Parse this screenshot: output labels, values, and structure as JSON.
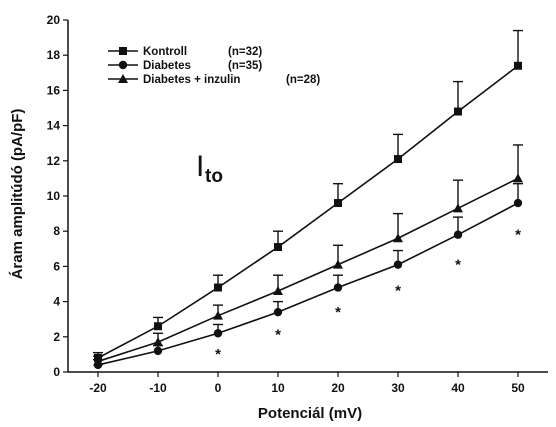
{
  "chart_data": {
    "type": "line",
    "xlabel": "Potenciál (mV)",
    "ylabel": "Áram amplitúdó (pA/pF)",
    "annotation": {
      "main": "I",
      "sub": "to"
    },
    "x": [
      -20,
      -10,
      0,
      10,
      20,
      30,
      40,
      50
    ],
    "xticks": [
      "-20",
      "-10",
      "0",
      "10",
      "20",
      "30",
      "40",
      "50"
    ],
    "xlim": [
      -25,
      55
    ],
    "ylim": [
      0,
      20
    ],
    "yticks": [
      "0",
      "2",
      "4",
      "6",
      "8",
      "10",
      "12",
      "14",
      "16",
      "18",
      "20"
    ],
    "grid": false,
    "legend_position": "top-left",
    "series": [
      {
        "name": "Kontroll",
        "n_label": "(n=32)",
        "marker": "square",
        "values": [
          0.8,
          2.6,
          4.8,
          7.1,
          9.6,
          12.1,
          14.8,
          17.4
        ],
        "errors": [
          0.3,
          0.5,
          0.7,
          0.9,
          1.1,
          1.4,
          1.7,
          2.0
        ]
      },
      {
        "name": "Diabetes",
        "n_label": "(n=35)",
        "marker": "circle",
        "values": [
          0.4,
          1.2,
          2.2,
          3.4,
          4.8,
          6.1,
          7.8,
          9.6
        ],
        "errors": [
          0.3,
          0.3,
          0.5,
          0.6,
          0.7,
          0.8,
          1.0,
          1.1
        ]
      },
      {
        "name": "Diabetes + inzulin",
        "n_label": "(n=28)",
        "marker": "triangle",
        "values": [
          0.6,
          1.7,
          3.2,
          4.6,
          6.1,
          7.6,
          9.3,
          11.0
        ],
        "errors": [
          0.3,
          0.5,
          0.6,
          0.9,
          1.1,
          1.4,
          1.6,
          1.9
        ]
      }
    ],
    "significance": {
      "symbol": "*",
      "x": [
        0,
        10,
        20,
        30,
        40,
        50
      ]
    }
  }
}
